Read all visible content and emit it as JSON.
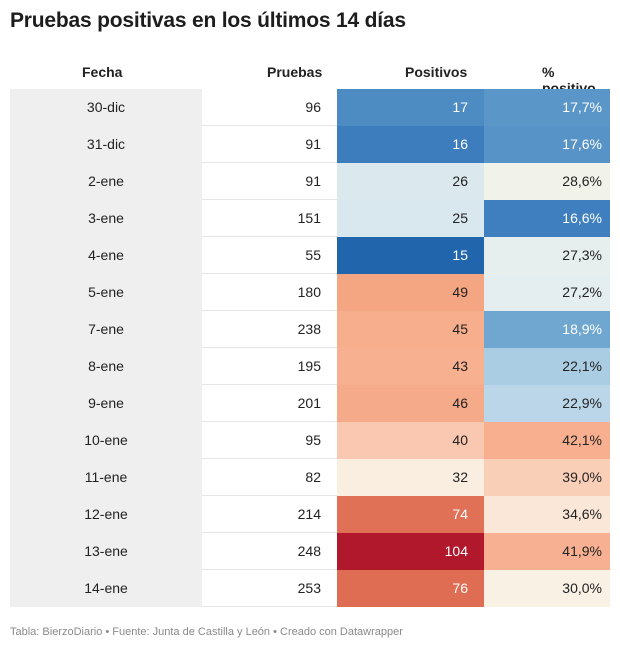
{
  "title": "Pruebas positivas en los últimos 14 días",
  "footer": "Tabla: BierzoDiario • Fuente: Junta de Castilla y León • Creado con Datawrapper",
  "chart_data": {
    "type": "table",
    "columns": [
      "Fecha",
      "Pruebas",
      "Positivos",
      "% positivo"
    ],
    "rows": [
      {
        "fecha": "30-dic",
        "pruebas": "96",
        "positivos": "17",
        "pct": "17,7%",
        "pos_bg": "#4d8cc3",
        "pos_fg": "#ffffff",
        "pct_bg": "#5b96c9",
        "pct_fg": "#ffffff"
      },
      {
        "fecha": "31-dic",
        "pruebas": "91",
        "positivos": "16",
        "pct": "17,6%",
        "pos_bg": "#3d7dbd",
        "pos_fg": "#ffffff",
        "pct_bg": "#5893c8",
        "pct_fg": "#ffffff"
      },
      {
        "fecha": "2-ene",
        "pruebas": "91",
        "positivos": "26",
        "pct": "28,6%",
        "pos_bg": "#dbe8ee",
        "pos_fg": "#222222",
        "pct_bg": "#f1f3ea",
        "pct_fg": "#222222"
      },
      {
        "fecha": "3-ene",
        "pruebas": "151",
        "positivos": "25",
        "pct": "16,6%",
        "pos_bg": "#d9e7ef",
        "pos_fg": "#222222",
        "pct_bg": "#3f7fbf",
        "pct_fg": "#ffffff"
      },
      {
        "fecha": "4-ene",
        "pruebas": "55",
        "positivos": "15",
        "pct": "27,3%",
        "pos_bg": "#2166ac",
        "pos_fg": "#ffffff",
        "pct_bg": "#e6eeee",
        "pct_fg": "#222222"
      },
      {
        "fecha": "5-ene",
        "pruebas": "180",
        "positivos": "49",
        "pct": "27,2%",
        "pos_bg": "#f4a582",
        "pos_fg": "#222222",
        "pct_bg": "#e4edef",
        "pct_fg": "#222222"
      },
      {
        "fecha": "7-ene",
        "pruebas": "238",
        "positivos": "45",
        "pct": "18,9%",
        "pos_bg": "#f6ae8d",
        "pos_fg": "#222222",
        "pct_bg": "#6fa7d1",
        "pct_fg": "#ffffff"
      },
      {
        "fecha": "8-ene",
        "pruebas": "195",
        "positivos": "43",
        "pct": "22,1%",
        "pos_bg": "#f7b191",
        "pos_fg": "#222222",
        "pct_bg": "#abcde3",
        "pct_fg": "#222222"
      },
      {
        "fecha": "9-ene",
        "pruebas": "201",
        "positivos": "46",
        "pct": "22,9%",
        "pos_bg": "#f5ab8a",
        "pos_fg": "#222222",
        "pct_bg": "#bad6e8",
        "pct_fg": "#222222"
      },
      {
        "fecha": "10-ene",
        "pruebas": "95",
        "positivos": "40",
        "pct": "42,1%",
        "pos_bg": "#fac8b0",
        "pos_fg": "#222222",
        "pct_bg": "#f7af8f",
        "pct_fg": "#222222"
      },
      {
        "fecha": "11-ene",
        "pruebas": "82",
        "positivos": "32",
        "pct": "39,0%",
        "pos_bg": "#faeee0",
        "pos_fg": "#222222",
        "pct_bg": "#f9d0b7",
        "pct_fg": "#222222"
      },
      {
        "fecha": "12-ene",
        "pruebas": "214",
        "positivos": "74",
        "pct": "34,6%",
        "pos_bg": "#e07056",
        "pos_fg": "#ffffff",
        "pct_bg": "#fbe7d8",
        "pct_fg": "#222222"
      },
      {
        "fecha": "13-ene",
        "pruebas": "248",
        "positivos": "104",
        "pct": "41,9%",
        "pos_bg": "#b2182b",
        "pos_fg": "#ffffff",
        "pct_bg": "#f7b192",
        "pct_fg": "#222222"
      },
      {
        "fecha": "14-ene",
        "pruebas": "253",
        "positivos": "76",
        "pct": "30,0%",
        "pos_bg": "#df6d54",
        "pos_fg": "#ffffff",
        "pct_bg": "#faf1e5",
        "pct_fg": "#222222"
      }
    ]
  }
}
